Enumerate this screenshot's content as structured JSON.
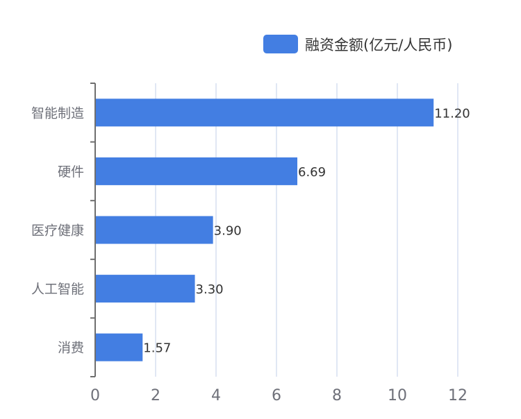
{
  "chart_data": {
    "type": "bar",
    "orientation": "horizontal",
    "categories": [
      "智能制造",
      "硬件",
      "医疗健康",
      "人工智能",
      "消费"
    ],
    "series": [
      {
        "name": "融资金额(亿元/人民币)",
        "values": [
          11.2,
          6.69,
          3.9,
          3.3,
          1.57
        ],
        "value_labels": [
          "11.20",
          "6.69",
          "3.90",
          "3.30",
          "1.57"
        ],
        "color": "#437ee2"
      }
    ],
    "xlim": [
      0,
      12
    ],
    "xticks": [
      0,
      2,
      4,
      6,
      8,
      10,
      12
    ],
    "x_tick_labels": [
      "0",
      "2",
      "4",
      "6",
      "8",
      "10",
      "12"
    ],
    "grid": "vertical",
    "legend_position": "top-right",
    "title": "",
    "xlabel": "",
    "ylabel": ""
  },
  "colors": {
    "bar": "#437ee2",
    "grid": "#d5dff0",
    "axis": "#6e6e6e",
    "category_text": "#6e7079",
    "tick_text": "#6e7079",
    "value_text": "#333333",
    "legend_text": "#333333"
  }
}
